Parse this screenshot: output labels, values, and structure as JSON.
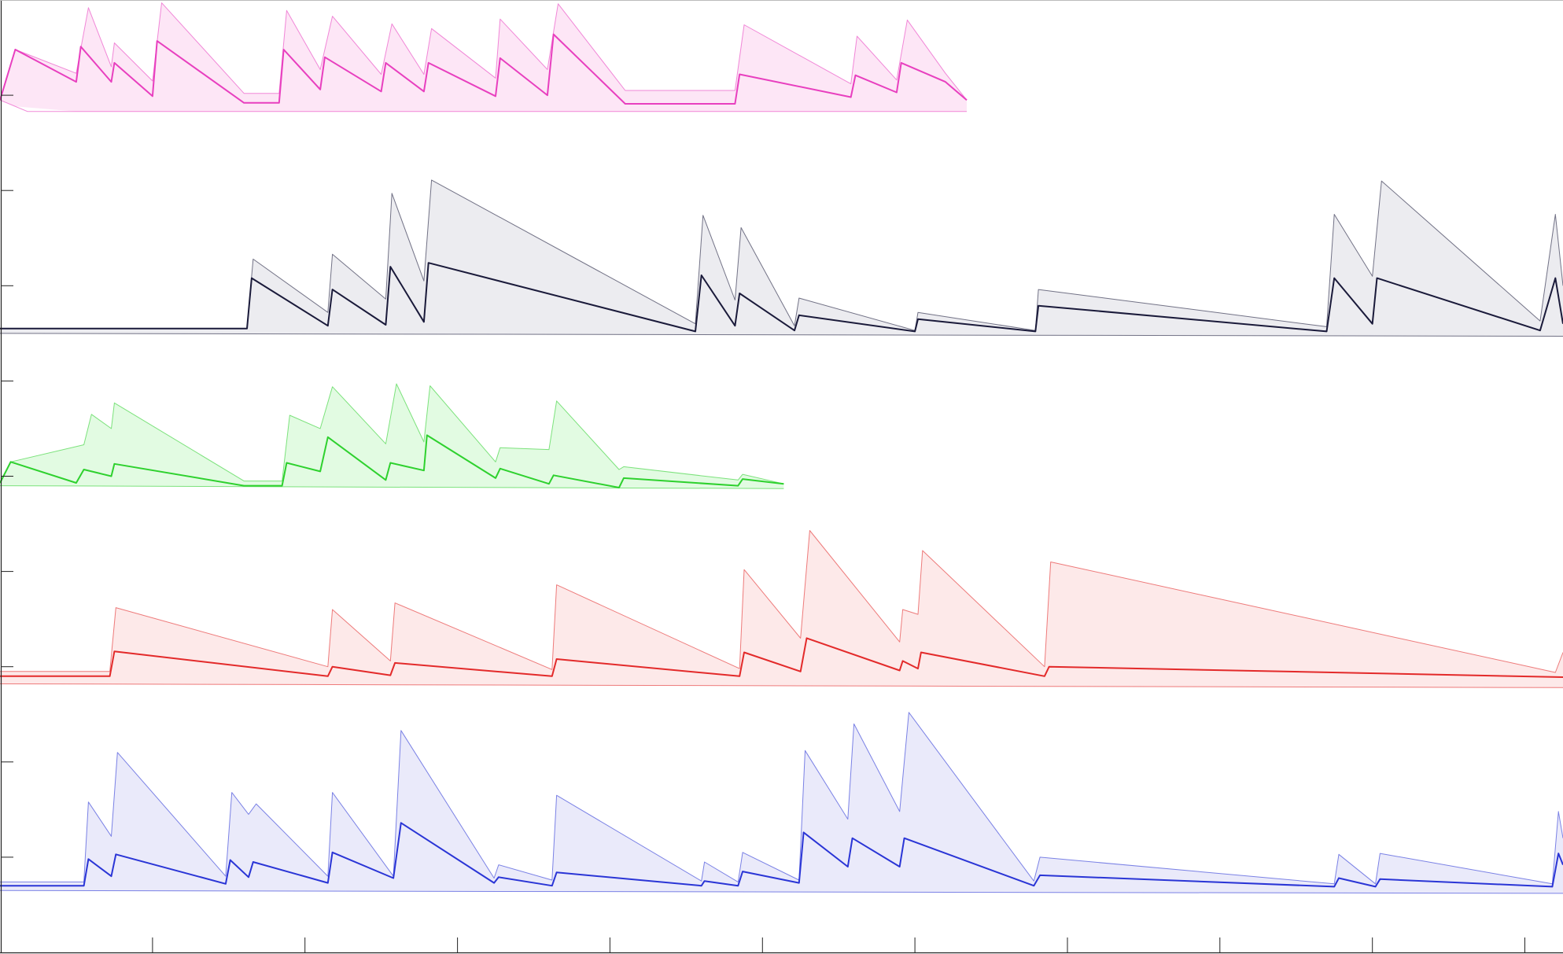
{
  "chart_data": {
    "type": "line",
    "title": "",
    "xlabel": "",
    "ylabel": "",
    "xlim": [
      0,
      1025
    ],
    "ylim": [
      0,
      10
    ],
    "x_ticks": [
      100,
      200,
      300,
      400,
      500,
      600,
      700,
      800,
      900,
      1000
    ],
    "y_ticks": [
      1,
      2,
      3,
      4,
      5,
      6,
      7,
      8,
      9
    ],
    "grid": false,
    "legend": "none",
    "series": [
      {
        "color": "#e83fbf",
        "fill": "#fde6f6",
        "baseline": 8.95,
        "mean_x": [
          0,
          10,
          50,
          53,
          73,
          75,
          100,
          103,
          160,
          183,
          186,
          210,
          213,
          250,
          253,
          278,
          281,
          325,
          328,
          359,
          363,
          410,
          482,
          485,
          558,
          561,
          588,
          591,
          620,
          634
        ],
        "mean_y": [
          8.95,
          9.48,
          9.14,
          9.51,
          9.14,
          9.34,
          8.99,
          9.57,
          8.92,
          8.92,
          9.48,
          9.06,
          9.4,
          9.04,
          9.34,
          9.04,
          9.34,
          8.99,
          9.39,
          9.0,
          9.64,
          8.91,
          8.91,
          9.22,
          8.98,
          9.21,
          9.03,
          9.34,
          9.14,
          8.95
        ],
        "upper_x": [
          0,
          10,
          50,
          58,
          73,
          75,
          100,
          106,
          160,
          183,
          188,
          210,
          218,
          250,
          257,
          278,
          283,
          325,
          328,
          359,
          366,
          410,
          482,
          488,
          558,
          562,
          588,
          595,
          620,
          634
        ],
        "upper_y": [
          8.95,
          9.48,
          9.23,
          9.92,
          9.3,
          9.55,
          9.15,
          9.97,
          9.02,
          9.02,
          9.89,
          9.27,
          9.83,
          9.22,
          9.75,
          9.22,
          9.7,
          9.18,
          9.8,
          9.27,
          9.96,
          9.05,
          9.05,
          9.74,
          9.12,
          9.62,
          9.16,
          9.79,
          9.23,
          8.95
        ],
        "lower_x": [
          0,
          18,
          634
        ],
        "lower_y": [
          8.95,
          8.83,
          8.83
        ]
      },
      {
        "color": "#1a1a3a",
        "fill": "#ececf0",
        "baseline": 6.55,
        "mean_x": [
          0,
          162,
          165,
          215,
          218,
          253,
          256,
          278,
          281,
          456,
          460,
          482,
          485,
          521,
          524,
          600,
          602,
          679,
          681,
          870,
          875,
          900,
          903,
          1010,
          1020,
          1025
        ],
        "mean_y": [
          6.55,
          6.55,
          7.08,
          6.58,
          6.96,
          6.59,
          7.2,
          6.62,
          7.24,
          6.52,
          7.11,
          6.58,
          6.92,
          6.53,
          6.69,
          6.52,
          6.65,
          6.52,
          6.79,
          6.52,
          7.08,
          6.6,
          7.08,
          6.53,
          7.08,
          6.6
        ],
        "upper_x": [
          0,
          162,
          166,
          215,
          218,
          253,
          257,
          278,
          283,
          456,
          461,
          482,
          486,
          521,
          524,
          600,
          602,
          679,
          681,
          870,
          875,
          900,
          906,
          1010,
          1020,
          1025
        ],
        "upper_y": [
          6.55,
          6.55,
          7.28,
          6.72,
          7.33,
          6.86,
          7.97,
          7.05,
          8.11,
          6.6,
          7.74,
          6.85,
          7.61,
          6.58,
          6.87,
          6.53,
          6.72,
          6.53,
          6.96,
          6.57,
          7.75,
          7.1,
          8.1,
          6.63,
          7.75,
          7.0
        ],
        "lower_x": [
          0,
          1025
        ],
        "lower_y": [
          6.5,
          6.47
        ]
      },
      {
        "color": "#2ed12e",
        "fill": "#e2fbe2",
        "baseline": 4.93,
        "mean_x": [
          0,
          7,
          50,
          55,
          73,
          75,
          160,
          185,
          188,
          210,
          215,
          253,
          256,
          278,
          280,
          325,
          328,
          360,
          363,
          406,
          409,
          484,
          487,
          514
        ],
        "mean_y": [
          4.93,
          5.15,
          4.93,
          5.07,
          5.0,
          5.13,
          4.9,
          4.9,
          5.14,
          5.05,
          5.41,
          4.96,
          5.14,
          5.06,
          5.43,
          4.98,
          5.08,
          4.92,
          5.01,
          4.88,
          4.98,
          4.9,
          4.97,
          4.92
        ],
        "upper_x": [
          0,
          7,
          55,
          60,
          73,
          75,
          160,
          185,
          190,
          210,
          218,
          253,
          260,
          278,
          282,
          325,
          328,
          360,
          365,
          406,
          409,
          484,
          487,
          514
        ],
        "upper_y": [
          4.93,
          5.15,
          5.33,
          5.65,
          5.5,
          5.77,
          4.95,
          4.95,
          5.64,
          5.5,
          5.94,
          5.34,
          5.97,
          5.36,
          5.95,
          5.15,
          5.3,
          5.28,
          5.79,
          5.07,
          5.1,
          4.96,
          5.02,
          4.92
        ],
        "lower_x": [
          0,
          514
        ],
        "lower_y": [
          4.9,
          4.87
        ]
      },
      {
        "color": "#e32a2a",
        "fill": "#fde9e9",
        "baseline": 2.9,
        "mean_x": [
          0,
          72,
          75,
          215,
          218,
          256,
          259,
          362,
          365,
          485,
          488,
          525,
          529,
          590,
          592,
          602,
          604,
          685,
          688,
          1025
        ],
        "mean_y": [
          2.9,
          2.9,
          3.16,
          2.9,
          3.0,
          2.91,
          3.04,
          2.9,
          3.08,
          2.9,
          3.15,
          2.95,
          3.3,
          2.96,
          3.06,
          2.98,
          3.15,
          2.9,
          3.0,
          2.89
        ],
        "upper_x": [
          0,
          72,
          76,
          215,
          218,
          256,
          259,
          362,
          365,
          485,
          488,
          525,
          531,
          590,
          592,
          602,
          605,
          685,
          689,
          1020,
          1025
        ],
        "upper_y": [
          2.95,
          2.95,
          3.62,
          3.0,
          3.6,
          3.06,
          3.67,
          2.97,
          3.86,
          2.98,
          4.02,
          3.3,
          4.43,
          3.26,
          3.6,
          3.55,
          4.22,
          3.0,
          4.1,
          2.94,
          3.15
        ],
        "lower_x": [
          0,
          1025
        ],
        "lower_y": [
          2.82,
          2.78
        ]
      },
      {
        "color": "#2a35d6",
        "fill": "#eaeafa",
        "baseline": 0.7,
        "mean_x": [
          0,
          55,
          58,
          73,
          76,
          148,
          151,
          163,
          166,
          215,
          218,
          258,
          263,
          324,
          327,
          362,
          365,
          460,
          462,
          484,
          487,
          524,
          527,
          556,
          559,
          590,
          593,
          678,
          682,
          875,
          878,
          902,
          905,
          1018,
          1022,
          1025
        ],
        "mean_y": [
          0.7,
          0.7,
          0.98,
          0.8,
          1.03,
          0.72,
          0.97,
          0.79,
          0.95,
          0.73,
          1.05,
          0.78,
          1.36,
          0.73,
          0.79,
          0.7,
          0.84,
          0.7,
          0.75,
          0.7,
          0.85,
          0.73,
          1.26,
          0.9,
          1.2,
          0.9,
          1.2,
          0.7,
          0.81,
          0.69,
          0.78,
          0.69,
          0.77,
          0.69,
          1.04,
          0.92
        ],
        "upper_x": [
          0,
          55,
          58,
          73,
          77,
          148,
          152,
          163,
          168,
          215,
          218,
          258,
          263,
          324,
          327,
          362,
          365,
          460,
          462,
          484,
          487,
          524,
          528,
          556,
          560,
          590,
          596,
          678,
          682,
          875,
          878,
          902,
          905,
          1018,
          1022,
          1025
        ],
        "upper_y": [
          0.74,
          0.74,
          1.58,
          1.22,
          2.1,
          0.8,
          1.68,
          1.45,
          1.56,
          0.8,
          1.68,
          0.8,
          2.33,
          0.78,
          0.92,
          0.76,
          1.65,
          0.75,
          0.95,
          0.74,
          1.05,
          0.76,
          2.12,
          1.4,
          2.4,
          1.48,
          2.52,
          0.75,
          1.0,
          0.72,
          1.03,
          0.72,
          1.04,
          0.72,
          1.48,
          1.2
        ],
        "lower_x": [
          0,
          1025
        ],
        "lower_y": [
          0.65,
          0.62
        ]
      }
    ]
  }
}
